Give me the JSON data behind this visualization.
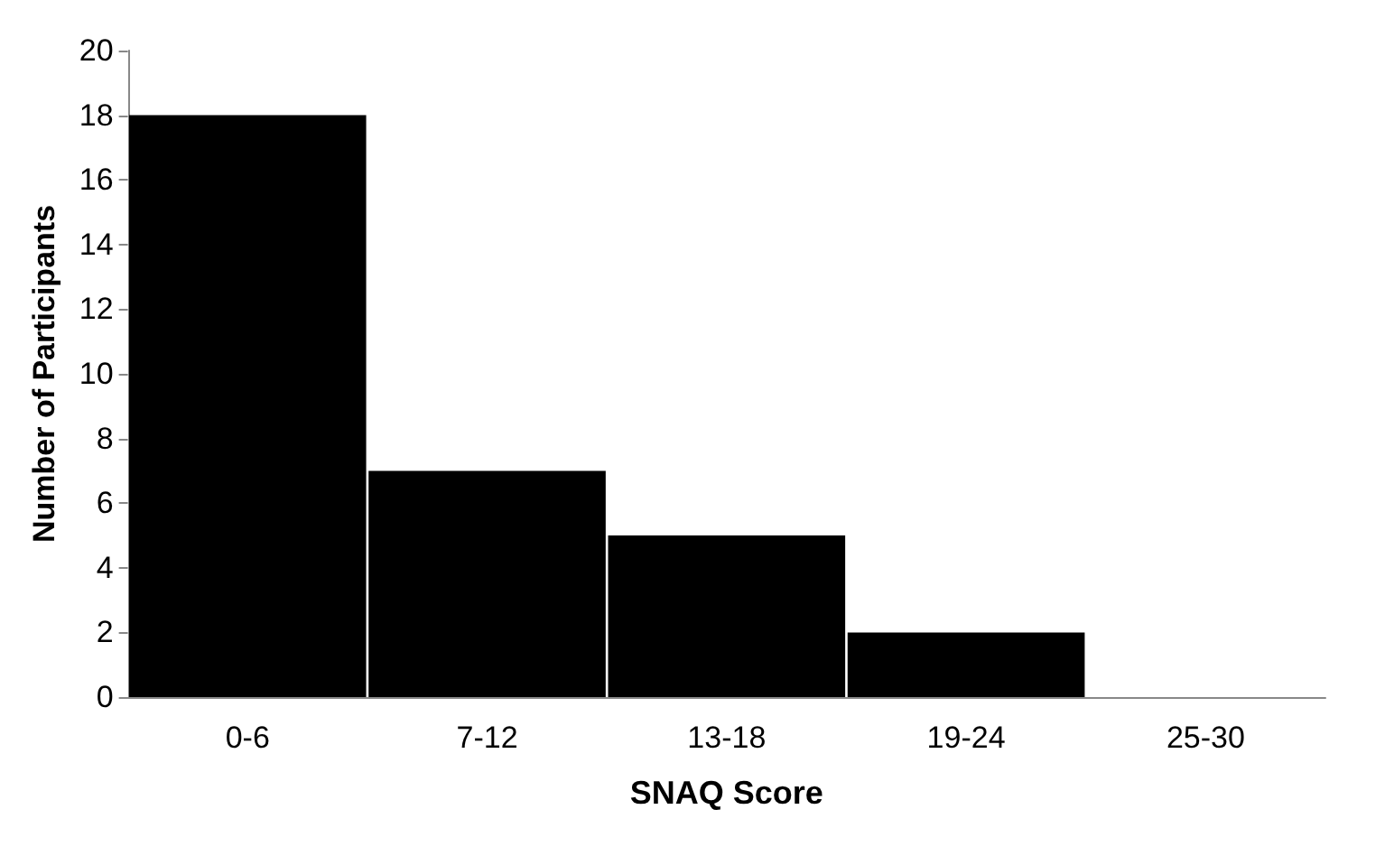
{
  "chart_data": {
    "type": "bar",
    "xlabel": "SNAQ Score",
    "ylabel": "Number of Participants",
    "categories": [
      "0-6",
      "7-12",
      "13-18",
      "19-24",
      "25-30"
    ],
    "values": [
      18,
      7,
      5,
      2,
      0
    ],
    "color": "#000000",
    "ylim": [
      0,
      20
    ],
    "yticks": [
      0,
      2,
      4,
      6,
      8,
      10,
      12,
      14,
      16,
      18,
      20
    ],
    "grid": false
  }
}
